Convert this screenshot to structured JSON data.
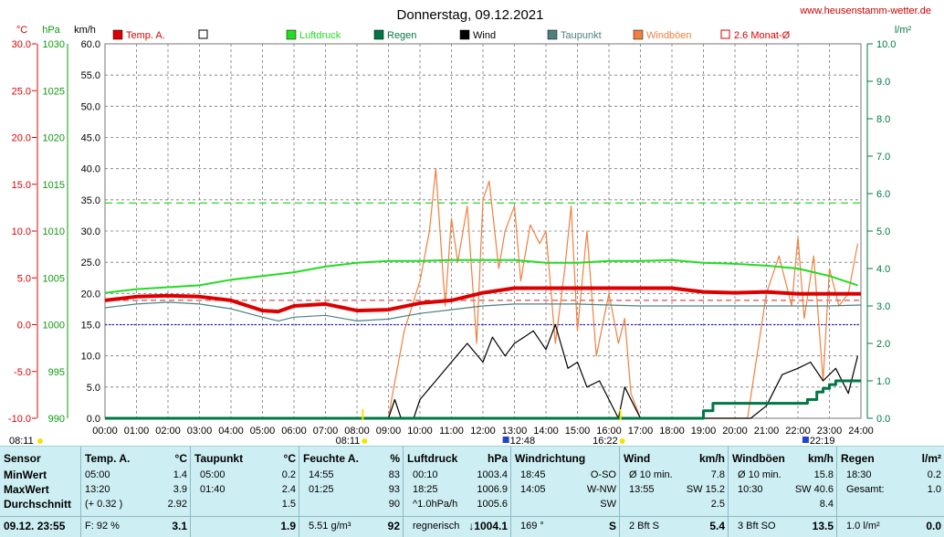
{
  "header": {
    "title": "Donnerstag, 09.12.2021",
    "website": "www.heusenstamm-wetter.de",
    "unit_temp": "°C",
    "unit_pressure": "hPa",
    "unit_speed": "km/h",
    "unit_rain": "l/m²"
  },
  "legend": [
    {
      "label": "Temp. A.",
      "color": "#dd0000",
      "style": "filled"
    },
    {
      "label": "",
      "color": "#ffffff",
      "style": "outline"
    },
    {
      "label": "Luftdruck",
      "color": "#22dd22",
      "style": "filled"
    },
    {
      "label": "Regen",
      "color": "#007744",
      "style": "filled"
    },
    {
      "label": "Wind",
      "color": "#000000",
      "style": "filled"
    },
    {
      "label": "Taupunkt",
      "color": "#4d8080",
      "style": "filled"
    },
    {
      "label": "Windböen",
      "color": "#f08040",
      "style": "filled"
    },
    {
      "label": "2.6 Monat-Ø",
      "color": "#dd0000",
      "style": "outline"
    }
  ],
  "axes": {
    "temp_ticks": [
      "30.0",
      "25.0",
      "20.0",
      "15.0",
      "10.0",
      "5.0",
      "0.0",
      "-5.0",
      "-10.0"
    ],
    "pressure_ticks": [
      "1030",
      "1025",
      "1020",
      "1015",
      "1010",
      "1005",
      "1000",
      "995",
      "990"
    ],
    "speed_ticks": [
      "60.0",
      "55.0",
      "50.0",
      "45.0",
      "40.0",
      "35.0",
      "30.0",
      "25.0",
      "20.0",
      "15.0",
      "10.0",
      "5.0",
      "0.0"
    ],
    "rain_ticks": [
      "10.0",
      "9.0",
      "8.0",
      "7.0",
      "6.0",
      "5.0",
      "4.0",
      "3.0",
      "2.0",
      "1.0",
      "0.0"
    ],
    "time_ticks": [
      "00:00",
      "01:00",
      "02:00",
      "03:00",
      "04:00",
      "05:00",
      "06:00",
      "07:00",
      "08:00",
      "09:00",
      "10:00",
      "11:00",
      "12:00",
      "13:00",
      "14:00",
      "15:00",
      "16:00",
      "17:00",
      "18:00",
      "19:00",
      "20:00",
      "21:00",
      "22:00",
      "23:00",
      "24:00"
    ]
  },
  "time_markers": {
    "sunrise": "08:11",
    "sunset": "16:22",
    "sunrise_left": "08:11",
    "moonrise": "12:48",
    "moonset": "22:19"
  },
  "chart_data": {
    "type": "line",
    "title": "Donnerstag, 09.12.2021",
    "x_range": [
      "00:00",
      "24:00"
    ],
    "ylim_speed_kmh": [
      0,
      60
    ],
    "ylim_temp_c": [
      -10,
      30
    ],
    "ylim_pressure_hpa": [
      990,
      1030
    ],
    "ylim_rain_lm2": [
      0,
      10
    ],
    "reference_lines": {
      "temp_monthly_avg_c": 2.6,
      "pressure_reference_hpa": 1013,
      "zero_temp_c": 0
    },
    "series": [
      {
        "name": "Temp. A.",
        "unit": "°C",
        "axis": "temp",
        "x": [
          0,
          1,
          2,
          3,
          4,
          5,
          5.5,
          6,
          7,
          8,
          9,
          10,
          11,
          12,
          13,
          14,
          15,
          16,
          17,
          18,
          19,
          20,
          21,
          22,
          23,
          24
        ],
        "values": [
          2.6,
          3.0,
          3.1,
          3.0,
          2.6,
          1.5,
          1.4,
          2.0,
          2.2,
          1.5,
          1.6,
          2.3,
          2.6,
          3.4,
          3.9,
          3.9,
          3.9,
          3.9,
          3.9,
          3.9,
          3.5,
          3.4,
          3.5,
          3.3,
          3.3,
          3.3
        ]
      },
      {
        "name": "Luftdruck",
        "unit": "hPa",
        "axis": "pressure",
        "x": [
          0,
          1,
          2,
          3,
          4,
          5,
          6,
          7,
          8,
          9,
          10,
          11,
          12,
          13,
          14,
          15,
          16,
          17,
          18,
          19,
          20,
          21,
          22,
          23,
          23.9
        ],
        "values": [
          1003.4,
          1003.8,
          1004.0,
          1004.2,
          1004.8,
          1005.2,
          1005.6,
          1006.2,
          1006.6,
          1006.8,
          1006.8,
          1006.9,
          1006.9,
          1006.9,
          1006.6,
          1006.6,
          1006.8,
          1006.8,
          1006.9,
          1006.6,
          1006.5,
          1006.3,
          1006.0,
          1005.2,
          1004.2
        ]
      },
      {
        "name": "Taupunkt",
        "unit": "°C",
        "axis": "temp",
        "x": [
          0,
          1,
          2,
          3,
          4,
          5,
          5.5,
          6,
          7,
          8,
          9,
          10,
          11,
          12,
          13,
          14,
          15,
          16,
          17,
          18,
          19,
          20,
          21,
          22,
          23,
          24
        ],
        "values": [
          1.8,
          2.2,
          2.4,
          2.2,
          1.7,
          0.8,
          0.4,
          0.8,
          1.0,
          0.4,
          0.6,
          1.2,
          1.6,
          2.0,
          2.2,
          2.2,
          2.2,
          2.1,
          2.0,
          2.0,
          2.0,
          2.0,
          2.0,
          2.0,
          2.0,
          2.1
        ]
      },
      {
        "name": "Wind",
        "unit": "km/h",
        "axis": "speed",
        "x": [
          9.0,
          9.2,
          9.4,
          9.8,
          10.0,
          10.5,
          11.0,
          11.5,
          12.0,
          12.3,
          12.7,
          13.0,
          13.3,
          13.6,
          14.0,
          14.3,
          14.7,
          15.0,
          15.3,
          15.7,
          16.0,
          16.3,
          16.5,
          16.8,
          17.0,
          20.5,
          21.0,
          21.5,
          22.0,
          22.4,
          22.8,
          23.2,
          23.6,
          23.9
        ],
        "values": [
          0,
          3,
          0,
          0,
          3,
          6,
          9,
          12,
          9,
          13,
          10,
          12,
          13,
          14,
          11,
          15,
          8,
          9,
          5,
          6,
          3,
          0,
          5,
          2,
          0,
          0,
          2,
          7,
          8,
          9,
          6,
          8,
          4,
          10
        ]
      },
      {
        "name": "Windböen",
        "unit": "km/h",
        "axis": "speed",
        "x": [
          9.0,
          9.1,
          9.5,
          10.0,
          10.3,
          10.5,
          10.8,
          11.0,
          11.2,
          11.5,
          11.8,
          12.0,
          12.2,
          12.5,
          12.7,
          13.0,
          13.2,
          13.5,
          13.8,
          14.0,
          14.3,
          14.6,
          14.8,
          15.0,
          15.3,
          15.6,
          16.0,
          16.3,
          16.5,
          16.7,
          17.0,
          20.4,
          20.7,
          21.0,
          21.4,
          21.8,
          22.0,
          22.2,
          22.5,
          22.8,
          23.0,
          23.3,
          23.6,
          23.9
        ],
        "values": [
          0,
          3,
          14,
          22,
          30,
          40,
          18,
          32,
          25,
          34,
          12,
          35,
          38,
          24,
          30,
          34,
          22,
          31,
          28,
          30,
          12,
          24,
          34,
          14,
          30,
          10,
          20,
          12,
          16,
          4,
          0,
          0,
          10,
          20,
          26,
          18,
          29,
          16,
          26,
          6,
          24,
          18,
          20,
          28
        ]
      },
      {
        "name": "Regen",
        "unit": "l/m²",
        "axis": "rain",
        "x": [
          0,
          18.5,
          19.0,
          19.3,
          20.0,
          21.0,
          21.5,
          22.0,
          22.3,
          22.6,
          22.8,
          23.0,
          23.2,
          24.0
        ],
        "values": [
          0,
          0,
          0.2,
          0.4,
          0.4,
          0.4,
          0.4,
          0.4,
          0.5,
          0.7,
          0.8,
          0.9,
          1.0,
          1.0
        ]
      }
    ]
  },
  "summary": {
    "row_labels": [
      "Sensor",
      "MinWert",
      "MaxWert",
      "Durchschnitt",
      "09.12. 23:55"
    ],
    "columns": [
      {
        "title": "Temp. A.",
        "unit": "°C",
        "rows": [
          [
            "05:00",
            "1.4"
          ],
          [
            "13:20",
            "3.9"
          ],
          [
            "(+ 0.32 )",
            "2.92"
          ],
          [
            "F: 92 %",
            "3.1"
          ]
        ]
      },
      {
        "title": "Taupunkt",
        "unit": "°C",
        "rows": [
          [
            "05:00",
            "0.2"
          ],
          [
            "01:40",
            "2.4"
          ],
          [
            "",
            "1.5"
          ],
          [
            "",
            "1.9"
          ]
        ]
      },
      {
        "title": "Feuchte A.",
        "unit": "%",
        "rows": [
          [
            "14:55",
            "83"
          ],
          [
            "01:25",
            "93"
          ],
          [
            "",
            "90"
          ],
          [
            "5.51 g/m³",
            "92"
          ]
        ]
      },
      {
        "title": "Luftdruck",
        "unit": "hPa",
        "rows": [
          [
            "00:10",
            "1003.4"
          ],
          [
            "18:25",
            "1006.9"
          ],
          [
            "^1.0hPa/h",
            "1005.6"
          ],
          [
            "regnerisch",
            "↓1004.1"
          ]
        ]
      },
      {
        "title": "Windrichtung",
        "unit": "",
        "rows": [
          [
            "18:45",
            "O-SO"
          ],
          [
            "14:05",
            "W-NW"
          ],
          [
            "",
            "SW"
          ],
          [
            "169 °",
            "S"
          ]
        ]
      },
      {
        "title": "Wind",
        "unit": "km/h",
        "rows": [
          [
            "Ø 10 min.",
            "7.8"
          ],
          [
            "13:55",
            "SW 15.2"
          ],
          [
            "",
            "2.5"
          ],
          [
            "2 Bft S",
            "5.4"
          ]
        ]
      },
      {
        "title": "Windböen",
        "unit": "km/h",
        "rows": [
          [
            "Ø 10 min.",
            "15.8"
          ],
          [
            "10:30",
            "SW 40.6"
          ],
          [
            "",
            "8.4"
          ],
          [
            "3 Bft SO",
            "13.5"
          ]
        ]
      },
      {
        "title": "Regen",
        "unit": "l/m²",
        "rows": [
          [
            "18:30",
            "0.2"
          ],
          [
            "Gesamt:",
            "1.0"
          ],
          [
            "",
            ""
          ],
          [
            "1.0 l/m²",
            "0.0"
          ]
        ]
      }
    ]
  }
}
